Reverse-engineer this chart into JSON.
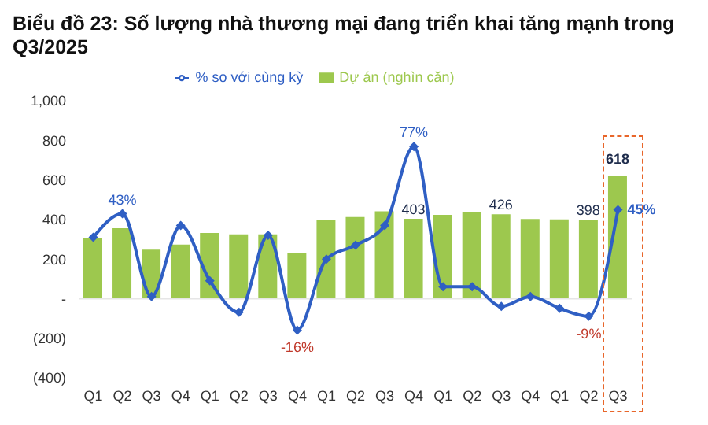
{
  "chart_data": {
    "type": "bar",
    "title": "Biểu đồ 23: Số lượng nhà thương mại đang triển khai tăng mạnh trong Q3/2025",
    "categories": [
      "Q1",
      "Q2",
      "Q3",
      "Q4",
      "Q1",
      "Q2",
      "Q3",
      "Q4",
      "Q1",
      "Q2",
      "Q3",
      "Q4",
      "Q1",
      "Q2",
      "Q3",
      "Q4",
      "Q1",
      "Q2",
      "Q3"
    ],
    "series": [
      {
        "name": "Dự án (nghìn căn)",
        "color": "#9dc84e",
        "values": [
          307,
          356,
          247,
          273,
          332,
          325,
          325,
          229,
          397,
          412,
          441,
          403,
          423,
          436,
          426,
          402,
          400,
          398,
          618
        ],
        "value_labels": [
          null,
          null,
          null,
          null,
          null,
          null,
          null,
          null,
          null,
          null,
          null,
          "403",
          null,
          null,
          "426",
          null,
          null,
          "398",
          "618"
        ]
      },
      {
        "name": "% so với cùng kỳ",
        "type": "line",
        "axis": "y2",
        "color": "#2f5fc4",
        "values": [
          31,
          43,
          1,
          37,
          9,
          -7,
          32,
          -16,
          20,
          27,
          37,
          77,
          6,
          6,
          -4,
          1,
          -5,
          -9,
          45
        ],
        "value_labels": [
          null,
          "43%",
          null,
          null,
          null,
          null,
          null,
          "-16%",
          null,
          null,
          null,
          "77%",
          null,
          null,
          null,
          null,
          null,
          "-9%",
          "45%"
        ]
      }
    ],
    "ylim": [
      -400,
      1000
    ],
    "yticks": [
      {
        "value": -400,
        "label": "(400)"
      },
      {
        "value": -200,
        "label": "(200)"
      },
      {
        "value": 0,
        "label": "-"
      },
      200,
      400,
      600,
      800,
      {
        "value": 1000,
        "label": "1,000"
      }
    ],
    "ref_lines": [
      {
        "axis": "y",
        "value": 0,
        "color": "#e6e6e6"
      }
    ],
    "legend": "top",
    "marker": "diamond"
  }
}
